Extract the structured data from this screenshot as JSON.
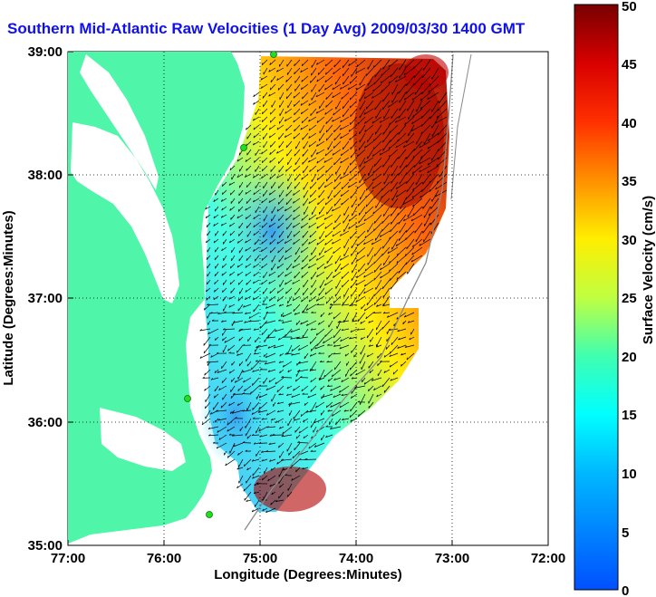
{
  "title": "Southern Mid-Atlantic Raw Velocities (1 Day Avg) 2009/03/30 1400 GMT",
  "xlabel": "Longitude (Degrees:Minutes)",
  "ylabel": "Latitude (Degrees:Minutes)",
  "x_ticks": [
    "77:00",
    "76:00",
    "75:00",
    "74:00",
    "73:00",
    "72:00"
  ],
  "y_ticks": [
    "39:00",
    "38:00",
    "37:00",
    "36:00",
    "35:00"
  ],
  "colorbar": {
    "label": "Surface Velocity (cm/s)",
    "ticks": [
      "0",
      "5",
      "10",
      "15",
      "20",
      "25",
      "30",
      "35",
      "40",
      "45",
      "50"
    ],
    "range": [
      0,
      50
    ]
  },
  "colors": {
    "land": "#4ff5a8",
    "water": "#ffffff",
    "title": "#1010ee",
    "station": "#22dd22"
  },
  "map_extent": {
    "lon": [
      -77,
      -72
    ],
    "lat": [
      35,
      39
    ]
  }
}
